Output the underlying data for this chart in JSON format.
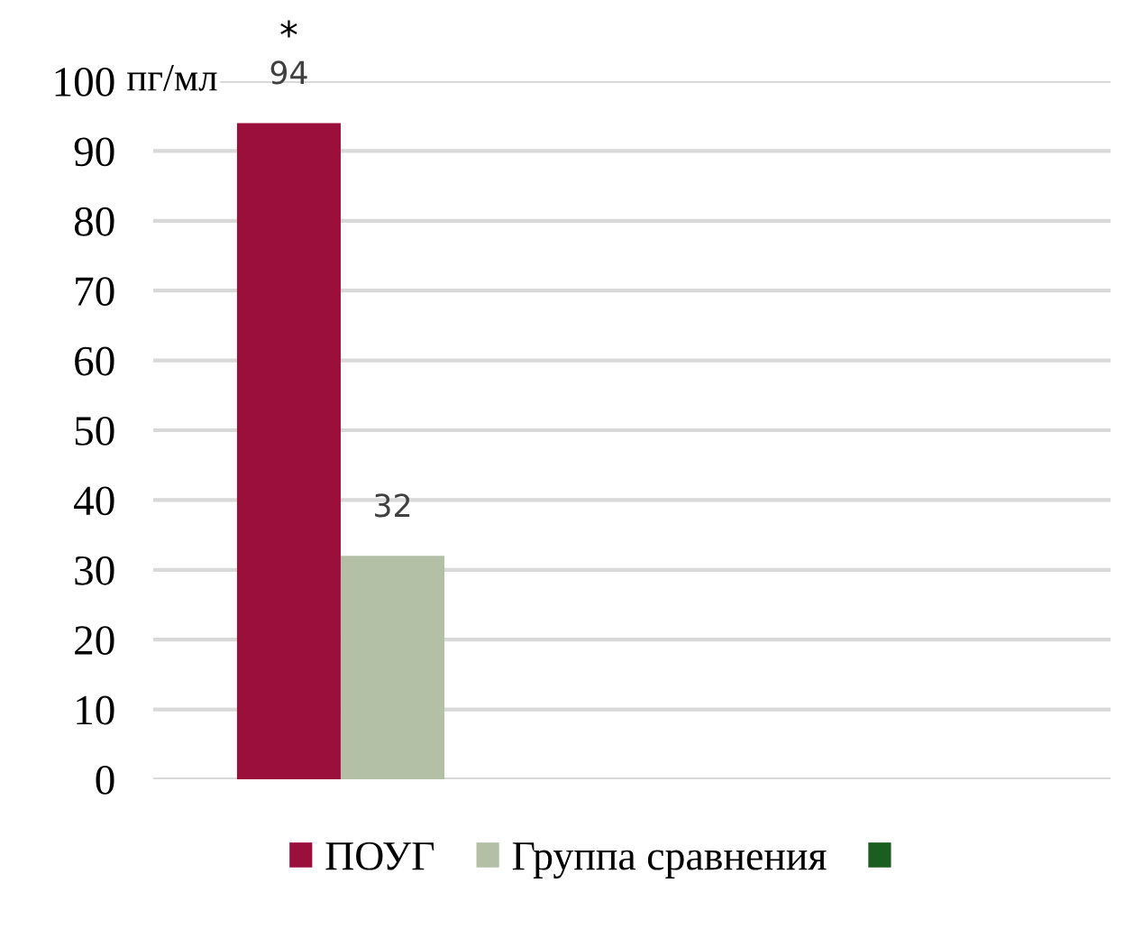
{
  "chart_data": {
    "type": "bar",
    "categories": [
      null,
      null
    ],
    "series": [
      {
        "name": "ПОУГ",
        "color": "#9b0f3c",
        "values": [
          94,
          null
        ]
      },
      {
        "name": "Группа сравнения",
        "color": "#b3c0a6",
        "values": [
          32,
          null
        ]
      },
      {
        "color": "#1b5e20",
        "values": [
          null,
          null
        ]
      }
    ],
    "ylabel": "пг/мл",
    "ylim": [
      0,
      100
    ],
    "yticks": [
      0,
      10,
      20,
      30,
      40,
      50,
      60,
      70,
      80,
      90,
      100
    ],
    "grid": "y",
    "tick_labels": "y",
    "legend": "bottom",
    "data_labels": true,
    "annotations": [
      {
        "text": "*",
        "y": 94
      }
    ]
  }
}
